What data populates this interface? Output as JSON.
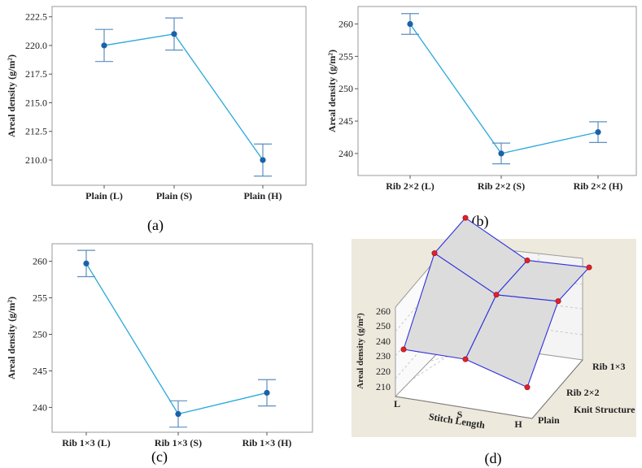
{
  "colors": {
    "line": "#29a8dc",
    "marker": "#1a62a8",
    "errorbar": "#5b8fbf",
    "surface_fill": "#dcdcdc",
    "surface_edge": "#2f2fe0",
    "surface_point": "#e0202a",
    "panel_d_bg": "#eee9dd"
  },
  "chart_data": [
    {
      "type": "line",
      "panel": "a",
      "caption": "(a)",
      "ylabel": "Areal density (g/m²)",
      "categories": [
        "Plain (L)",
        "Plain (S)",
        "Plain (H)"
      ],
      "values": [
        220.0,
        221.0,
        210.0
      ],
      "error": [
        1.4,
        1.4,
        1.4
      ],
      "ylim": [
        207.8,
        223.4
      ],
      "yticks": [
        210.0,
        212.5,
        215.0,
        217.5,
        220.0,
        222.5
      ],
      "ytick_labels": [
        "210.0",
        "212.5",
        "215.0",
        "217.5",
        "220.0",
        "222.5"
      ]
    },
    {
      "type": "line",
      "panel": "b",
      "caption": "(b)",
      "ylabel": "Areal density (g/m²)",
      "categories": [
        "Rib 2×2 (L)",
        "Rib 2×2 (S)",
        "Rib 2×2 (H)"
      ],
      "values": [
        260.0,
        240.0,
        243.3
      ],
      "error": [
        1.6,
        1.6,
        1.6
      ],
      "ylim": [
        236.6,
        262.7
      ],
      "yticks": [
        240,
        245,
        250,
        255,
        260
      ],
      "ytick_labels": [
        "240",
        "245",
        "250",
        "255",
        "260"
      ]
    },
    {
      "type": "line",
      "panel": "c",
      "caption": "(c)",
      "ylabel": "Areal density (g/m²)",
      "categories": [
        "Rib 1×3 (L)",
        "Rib 1×3 (S)",
        "Rib 1×3 (H)"
      ],
      "values": [
        259.7,
        239.1,
        242.0
      ],
      "error": [
        1.8,
        1.8,
        1.8
      ],
      "ylim": [
        236.6,
        262.4
      ],
      "yticks": [
        240,
        245,
        250,
        255,
        260
      ],
      "ytick_labels": [
        "240",
        "245",
        "250",
        "255",
        "260"
      ]
    },
    {
      "type": "surface",
      "panel": "d",
      "caption": "(d)",
      "zlabel": "Areal density (g/m²)",
      "xlabel": "Stitch Length",
      "ylabel": "Knit Structure",
      "x_categories": [
        "L",
        "S",
        "H"
      ],
      "y_categories": [
        "Plain",
        "Rib 2×2",
        "Rib 1×3"
      ],
      "z_ticks": [
        210,
        220,
        230,
        240,
        250,
        260
      ],
      "z_tick_labels": [
        "210",
        "220",
        "230",
        "240",
        "250",
        "260"
      ],
      "values": [
        [
          220.0,
          221.0,
          210.0
        ],
        [
          260.0,
          240.0,
          243.3
        ],
        [
          259.7,
          239.1,
          242.0
        ]
      ]
    }
  ]
}
